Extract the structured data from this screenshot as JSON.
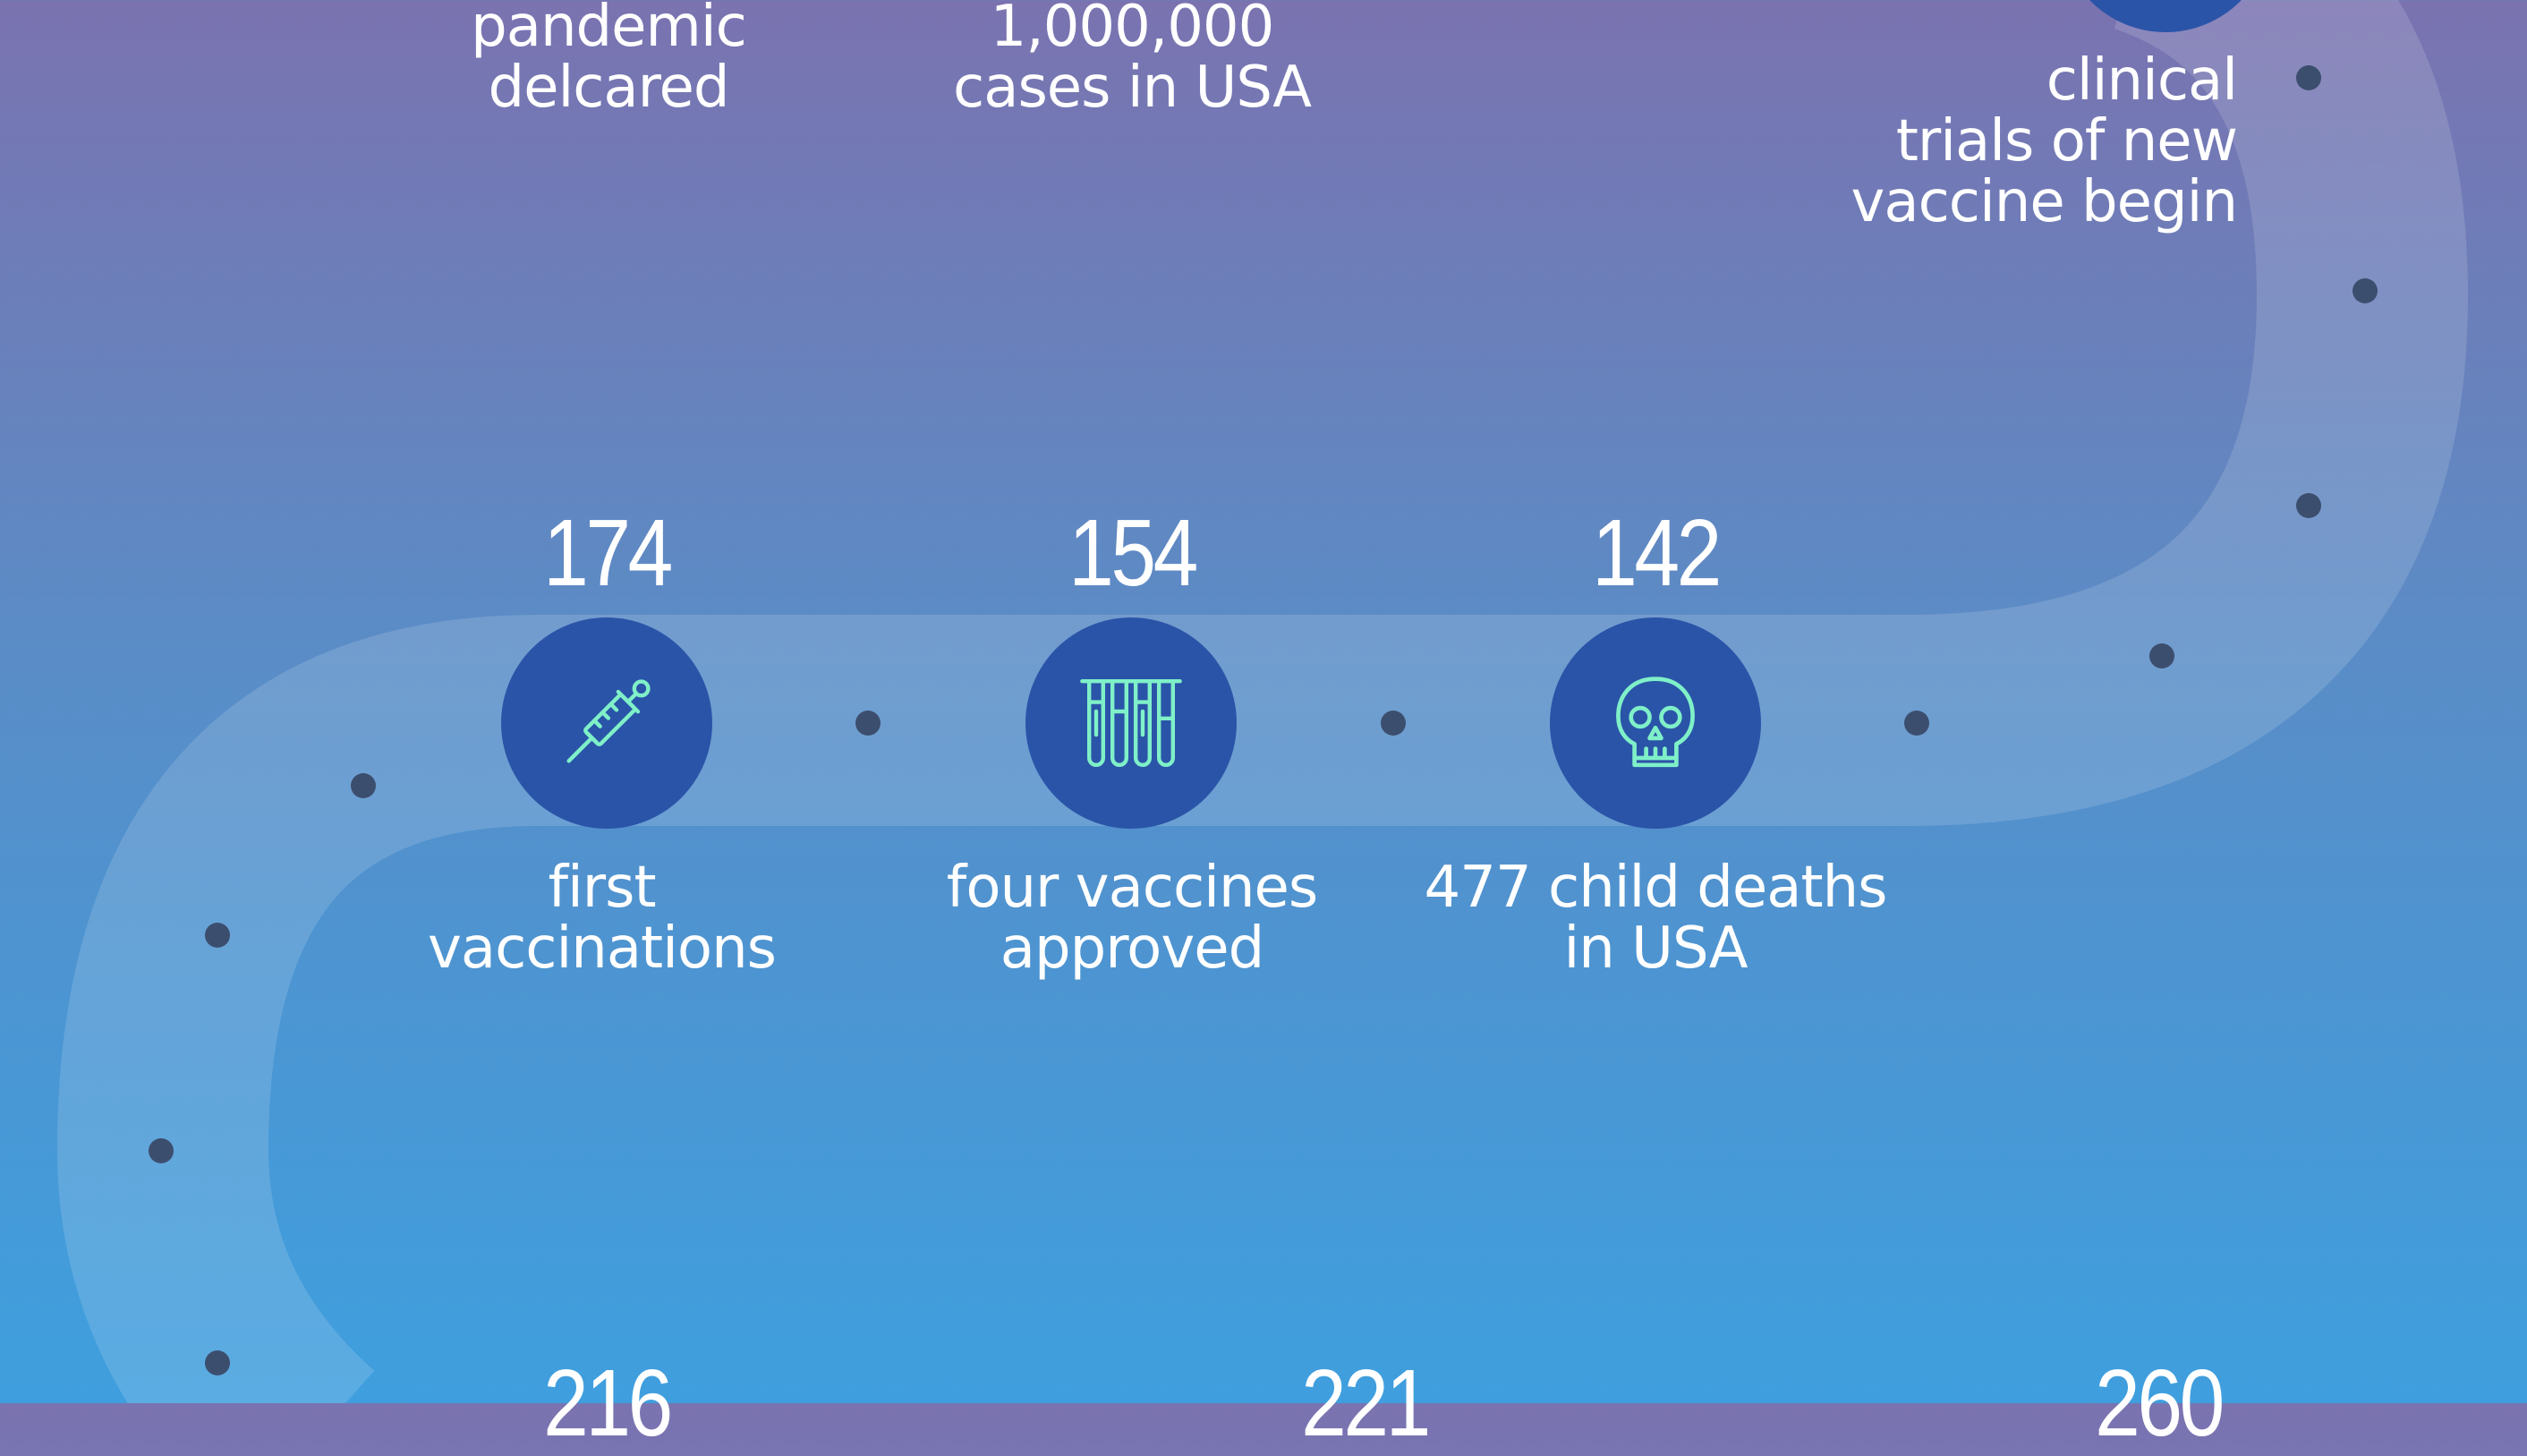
{
  "timeline": {
    "events": [
      {
        "id": "pandemic",
        "label": "pandemic\ndelcared"
      },
      {
        "id": "million-cases",
        "label": "1,000,000\ncases in USA"
      },
      {
        "id": "clinical-trials",
        "label": "clinical\ntrials of new\nvaccine begin"
      },
      {
        "id": "first-vaccinations",
        "number": "174",
        "label": "first\nvaccinations",
        "icon": "syringe-icon"
      },
      {
        "id": "four-vaccines",
        "number": "154",
        "label": "four vaccines\napproved",
        "icon": "test-tubes-icon"
      },
      {
        "id": "child-deaths",
        "number": "142",
        "label": "477 child deaths\nin USA",
        "icon": "skull-icon"
      }
    ],
    "bottom_numbers": [
      "216",
      "221",
      "260"
    ]
  },
  "colors": {
    "background_top": "#7a73b0",
    "background_bottom": "#3f9fde",
    "node_fill": "#2a54a8",
    "icon_stroke": "#7ff0c8",
    "track": "rgba(255,255,255,0.14)",
    "dot": "#3c4e6e",
    "text": "#ffffff"
  }
}
